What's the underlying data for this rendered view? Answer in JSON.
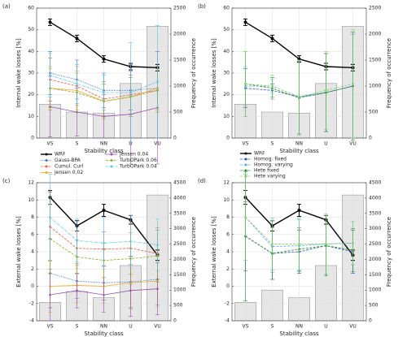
{
  "chart_data": [
    {
      "type": "combo",
      "label": "(a)",
      "xlabel": "Stability class",
      "ylabel": "Internal wake losses [%]",
      "y2label": "Frequency of occurrence",
      "categories": [
        "VS",
        "S",
        "NN",
        "U",
        "VU"
      ],
      "ylim": [
        0,
        60
      ],
      "yticks": [
        0,
        10,
        20,
        30,
        40,
        50,
        60
      ],
      "y2lim": [
        0,
        2500
      ],
      "y2ticks": [
        0,
        500,
        1000,
        1500,
        2000,
        2500
      ],
      "grid": true,
      "legend": "below",
      "bars": {
        "values": [
          650,
          500,
          480,
          1050,
          2150
        ],
        "color": "#e6e6e6",
        "axis": "y2"
      },
      "series": [
        {
          "name": "WRF",
          "color": "#000000",
          "style": "solid",
          "values": [
            53.5,
            46,
            36.5,
            33,
            32.5
          ],
          "errors": [
            1.5,
            1.5,
            1.5,
            1.5,
            1.5
          ]
        },
        {
          "name": "Gauss-BPA",
          "color": "#3b6fd1",
          "style": "dotted",
          "values": [
            30,
            27,
            22,
            22,
            23
          ],
          "errors": [
            10,
            9,
            8,
            9,
            10
          ]
        },
        {
          "name": "Cumul. Curl",
          "color": "#e0604a",
          "style": "dashed",
          "values": [
            27,
            24,
            18,
            20,
            22
          ],
          "errors": [
            10,
            9,
            8,
            9,
            10
          ]
        },
        {
          "name": "Jensen 0.02",
          "color": "#f0a830",
          "style": "solid",
          "values": [
            23,
            22,
            17,
            19,
            23
          ],
          "errors": [
            9,
            9,
            8,
            9,
            10
          ]
        },
        {
          "name": "Jensen 0.04",
          "color": "#9b4fb0",
          "style": "solid",
          "values": [
            14.5,
            12,
            10,
            11,
            14
          ],
          "errors": [
            14,
            11,
            10,
            23,
            26
          ]
        },
        {
          "name": "TurbOPark 0.06",
          "color": "#8fa832",
          "style": "dashed",
          "values": [
            23,
            21,
            17,
            19,
            22
          ],
          "errors": [
            10,
            9,
            8,
            9,
            10
          ]
        },
        {
          "name": "TurbOPark 0.04",
          "color": "#5ec3e6",
          "style": "dashdot",
          "values": [
            29,
            25,
            21,
            21,
            26
          ],
          "errors": [
            10,
            9,
            8,
            23,
            26
          ]
        }
      ]
    },
    {
      "type": "combo",
      "label": "(b)",
      "xlabel": "Stability class",
      "ylabel": "Internal wake losses [%]",
      "y2label": "Frequency of occurrence",
      "categories": [
        "VS",
        "S",
        "NN",
        "U",
        "VU"
      ],
      "ylim": [
        0,
        60
      ],
      "yticks": [
        0,
        10,
        20,
        30,
        40,
        50,
        60
      ],
      "y2lim": [
        0,
        2500
      ],
      "y2ticks": [
        0,
        500,
        1000,
        1500,
        2000,
        2500
      ],
      "grid": true,
      "legend": "below",
      "bars": {
        "values": [
          650,
          500,
          480,
          1050,
          2150
        ],
        "color": "#e6e6e6",
        "axis": "y2"
      },
      "series": [
        {
          "name": "WRF",
          "color": "#000000",
          "style": "solid",
          "values": [
            53.5,
            46,
            36.5,
            33,
            32.5
          ],
          "errors": [
            1.5,
            1.5,
            1.5,
            1.5,
            1.5
          ]
        },
        {
          "name": "Homog. fixed",
          "color": "#2a4fb0",
          "style": "dashed",
          "values": [
            23,
            22,
            19,
            21,
            24
          ],
          "errors": [
            9,
            3,
            17,
            18,
            24
          ]
        },
        {
          "name": "Homog. varying",
          "color": "#5ea8e8",
          "style": "dashed",
          "values": [
            24,
            24,
            19,
            21,
            24
          ],
          "errors": [
            9,
            3,
            17,
            18,
            24
          ]
        },
        {
          "name": "Hete fixed",
          "color": "#2e8b3a",
          "style": "dashed",
          "values": [
            25,
            23,
            18.5,
            21,
            24
          ],
          "errors": [
            15,
            5,
            17,
            18,
            25
          ]
        },
        {
          "name": "Hete varying",
          "color": "#86d070",
          "style": "dashed",
          "values": [
            25,
            24,
            19,
            22,
            25
          ],
          "errors": [
            15,
            5,
            17,
            18,
            25
          ]
        }
      ]
    },
    {
      "type": "combo",
      "label": "(c)",
      "xlabel": "Stability class",
      "ylabel": "External wake losses [%]",
      "y2label": "Frequency of occurrence",
      "categories": [
        "VS",
        "S",
        "NN",
        "U",
        "VU"
      ],
      "ylim": [
        -4,
        12
      ],
      "yticks": [
        -4,
        -2,
        0,
        2,
        4,
        6,
        8,
        10,
        12
      ],
      "y2lim": [
        0,
        4500
      ],
      "y2ticks": [
        0,
        500,
        1000,
        1500,
        2000,
        2500,
        3000,
        3500,
        4000,
        4500
      ],
      "grid": true,
      "bars": {
        "values": [
          600,
          950,
          750,
          1800,
          4100
        ],
        "color": "#e6e6e6",
        "axis": "y2"
      },
      "series": [
        {
          "name": "WRF",
          "color": "#000000",
          "style": "solid",
          "values": [
            10.3,
            7.0,
            8.8,
            7.7,
            3.6
          ],
          "errors": [
            0.8,
            0.6,
            0.7,
            0.5,
            0.6
          ]
        },
        {
          "name": "Gauss-BPA",
          "color": "#3b6fd1",
          "style": "dotted",
          "values": [
            1.5,
            0.6,
            0.4,
            0.5,
            0.8
          ],
          "errors": [
            4,
            2,
            2,
            3,
            3
          ]
        },
        {
          "name": "Cumul. Curl",
          "color": "#e0604a",
          "style": "dashed",
          "values": [
            6.9,
            4.4,
            4.3,
            4.4,
            3.8
          ],
          "errors": [
            4,
            2,
            2,
            3,
            3
          ]
        },
        {
          "name": "Jensen 0.02",
          "color": "#f0a830",
          "style": "solid",
          "values": [
            0.0,
            0.1,
            0.0,
            0.4,
            0.6
          ],
          "errors": [
            3,
            2,
            2,
            3,
            3
          ]
        },
        {
          "name": "Jensen 0.04",
          "color": "#9b4fb0",
          "style": "solid",
          "values": [
            -1.0,
            -0.5,
            -1.0,
            -0.5,
            -0.3
          ],
          "errors": [
            3,
            2,
            2,
            3,
            3
          ]
        },
        {
          "name": "TurbOPark 0.06",
          "color": "#8fa832",
          "style": "dashed",
          "values": [
            5.5,
            3.4,
            3.0,
            3.2,
            3.5
          ],
          "errors": [
            4,
            2,
            2,
            3,
            3
          ]
        },
        {
          "name": "TurbOPark 0.04",
          "color": "#5ec3e6",
          "style": "dashdot",
          "values": [
            8.0,
            5.3,
            5.0,
            5.2,
            4.8
          ],
          "errors": [
            5,
            2.5,
            3,
            3,
            3
          ]
        }
      ]
    },
    {
      "type": "combo",
      "label": "(d)",
      "xlabel": "Stability class",
      "ylabel": "External wake losses [%]",
      "y2label": "Frequency of occurrence",
      "categories": [
        "VS",
        "S",
        "NN",
        "U",
        "VU"
      ],
      "ylim": [
        -4,
        12
      ],
      "yticks": [
        -4,
        -2,
        0,
        2,
        4,
        6,
        8,
        10,
        12
      ],
      "y2lim": [
        0,
        4500
      ],
      "y2ticks": [
        0,
        500,
        1000,
        1500,
        2000,
        2500,
        3000,
        3500,
        4000,
        4500
      ],
      "grid": true,
      "bars": {
        "values": [
          600,
          1000,
          750,
          1800,
          4100
        ],
        "color": "#e6e6e6",
        "axis": "y2"
      },
      "series": [
        {
          "name": "WRF",
          "color": "#000000",
          "style": "solid",
          "values": [
            10.3,
            7.0,
            8.8,
            7.7,
            3.6
          ],
          "errors": [
            0.8,
            0.6,
            0.7,
            0.5,
            0.6
          ]
        },
        {
          "name": "Homog. fixed",
          "color": "#2a4fb0",
          "style": "dashed",
          "values": [
            5.8,
            3.8,
            4.0,
            4.7,
            4.0
          ],
          "errors": [
            4,
            3,
            2.5,
            3.5,
            2.5
          ]
        },
        {
          "name": "Homog. varying",
          "color": "#5ea8e8",
          "style": "dashed",
          "values": [
            8.0,
            4.6,
            4.7,
            4.9,
            5.0
          ],
          "errors": [
            5,
            3,
            3,
            3.5,
            2.5
          ]
        },
        {
          "name": "Hete fixed",
          "color": "#2e8b3a",
          "style": "dashed",
          "values": [
            5.8,
            3.8,
            4.3,
            4.7,
            4.2
          ],
          "errors": [
            7.5,
            3,
            2.5,
            3.5,
            2.5
          ]
        },
        {
          "name": "Hete varying",
          "color": "#86d070",
          "style": "dashed",
          "values": [
            8.0,
            4.9,
            4.9,
            4.9,
            5.0
          ],
          "errors": [
            5,
            3,
            3,
            3.5,
            2.5
          ]
        }
      ]
    }
  ]
}
